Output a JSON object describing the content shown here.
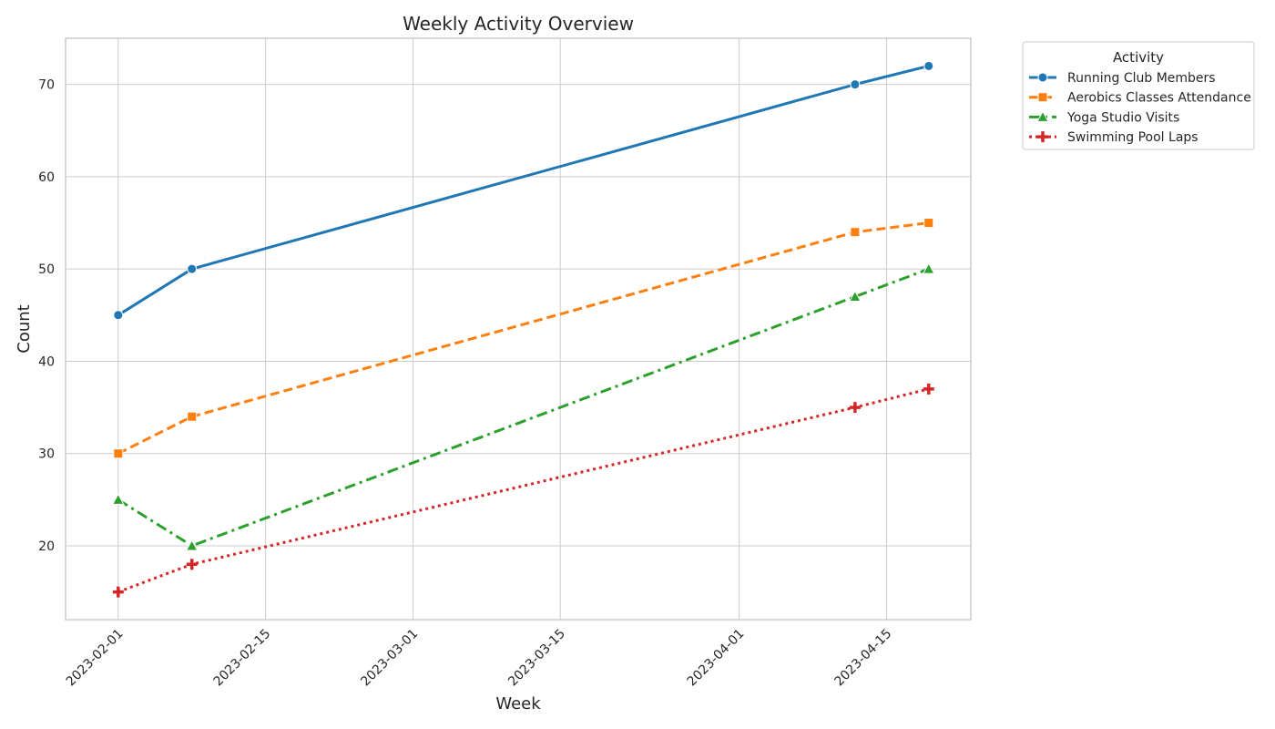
{
  "chart_data": {
    "type": "line",
    "title": "Weekly Activity Overview",
    "xlabel": "Week",
    "ylabel": "Count",
    "x_tick_labels": [
      "2023-02-01",
      "2023-02-15",
      "2023-03-01",
      "2023-03-15",
      "2023-04-01",
      "2023-04-15"
    ],
    "y_ticks": [
      20,
      30,
      40,
      50,
      60,
      70
    ],
    "xlim": [
      "2023-01-27",
      "2023-04-23"
    ],
    "ylim": [
      12,
      75
    ],
    "x": [
      "2023-02-01",
      "2023-02-08",
      "2023-04-12",
      "2023-04-19"
    ],
    "grid": true,
    "legend": {
      "title": "Activity",
      "placement": "outside-top-right"
    },
    "series": [
      {
        "name": "Running Club Members",
        "values": [
          45,
          50,
          70,
          72
        ],
        "color": "#1f77b4",
        "marker": "circle",
        "line_style": "solid"
      },
      {
        "name": "Aerobics Classes Attendance",
        "values": [
          30,
          34,
          54,
          55
        ],
        "color": "#ff7f0e",
        "marker": "square",
        "line_style": "dashed"
      },
      {
        "name": "Yoga Studio Visits",
        "values": [
          25,
          20,
          47,
          50
        ],
        "color": "#2ca02c",
        "marker": "triangle",
        "line_style": "dashdot"
      },
      {
        "name": "Swimming Pool Laps",
        "values": [
          15,
          18,
          35,
          37
        ],
        "color": "#d62728",
        "marker": "plus",
        "line_style": "dotted"
      }
    ]
  }
}
